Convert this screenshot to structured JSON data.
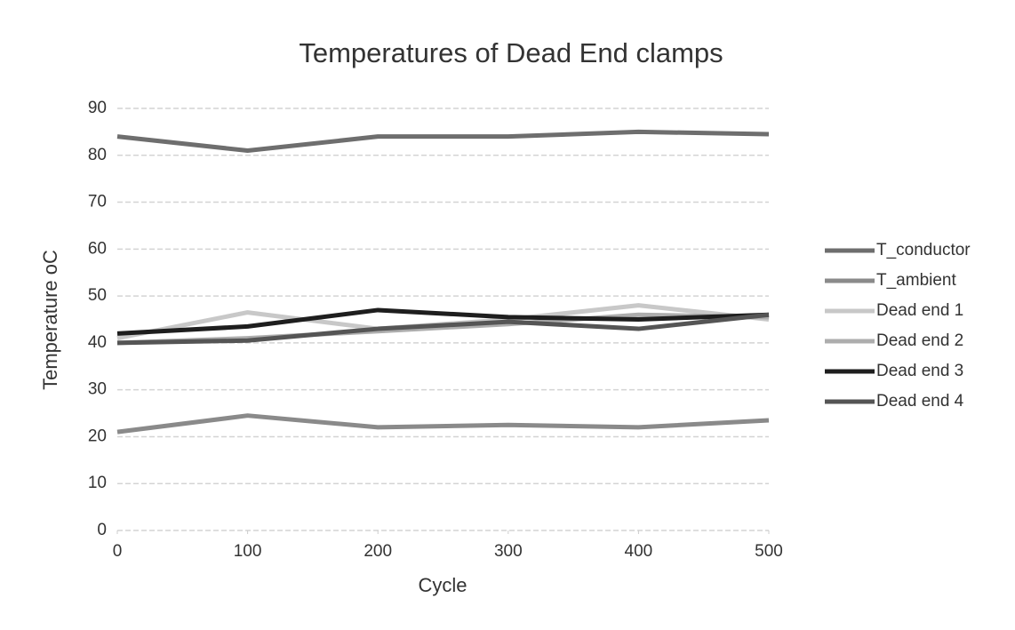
{
  "chart_data": {
    "type": "line",
    "title": "Temperatures of Dead End clamps",
    "x_label": "Cycle",
    "y_label": "Temperature oC",
    "x": [
      0,
      100,
      200,
      300,
      400,
      500
    ],
    "series": [
      {
        "name": "T_conductor",
        "color": "#6e6e6e",
        "values": [
          84,
          81,
          84,
          84,
          85,
          84.5
        ]
      },
      {
        "name": "T_ambient",
        "color": "#8a8a8a",
        "values": [
          21,
          24.5,
          22,
          22.5,
          22,
          23.5
        ]
      },
      {
        "name": "Dead end 1",
        "color": "#c8c8c8",
        "values": [
          41,
          46.5,
          43,
          45,
          48,
          45
        ]
      },
      {
        "name": "Dead end 2",
        "color": "#adadad",
        "values": [
          40,
          41,
          42.5,
          44,
          46,
          45.5
        ]
      },
      {
        "name": "Dead end 3",
        "color": "#1e1e1e",
        "values": [
          42,
          43.5,
          47,
          45.5,
          45,
          46
        ]
      },
      {
        "name": "Dead end 4",
        "color": "#555555",
        "values": [
          40,
          40.5,
          43,
          44.5,
          43,
          46
        ]
      }
    ],
    "xlim": [
      0,
      500
    ],
    "xticks": [
      0,
      100,
      200,
      300,
      400,
      500
    ],
    "ylim": [
      0,
      90
    ],
    "yticks": [
      0,
      10,
      20,
      30,
      40,
      50,
      60,
      70,
      80,
      90
    ],
    "grid": true,
    "legend": "right"
  }
}
